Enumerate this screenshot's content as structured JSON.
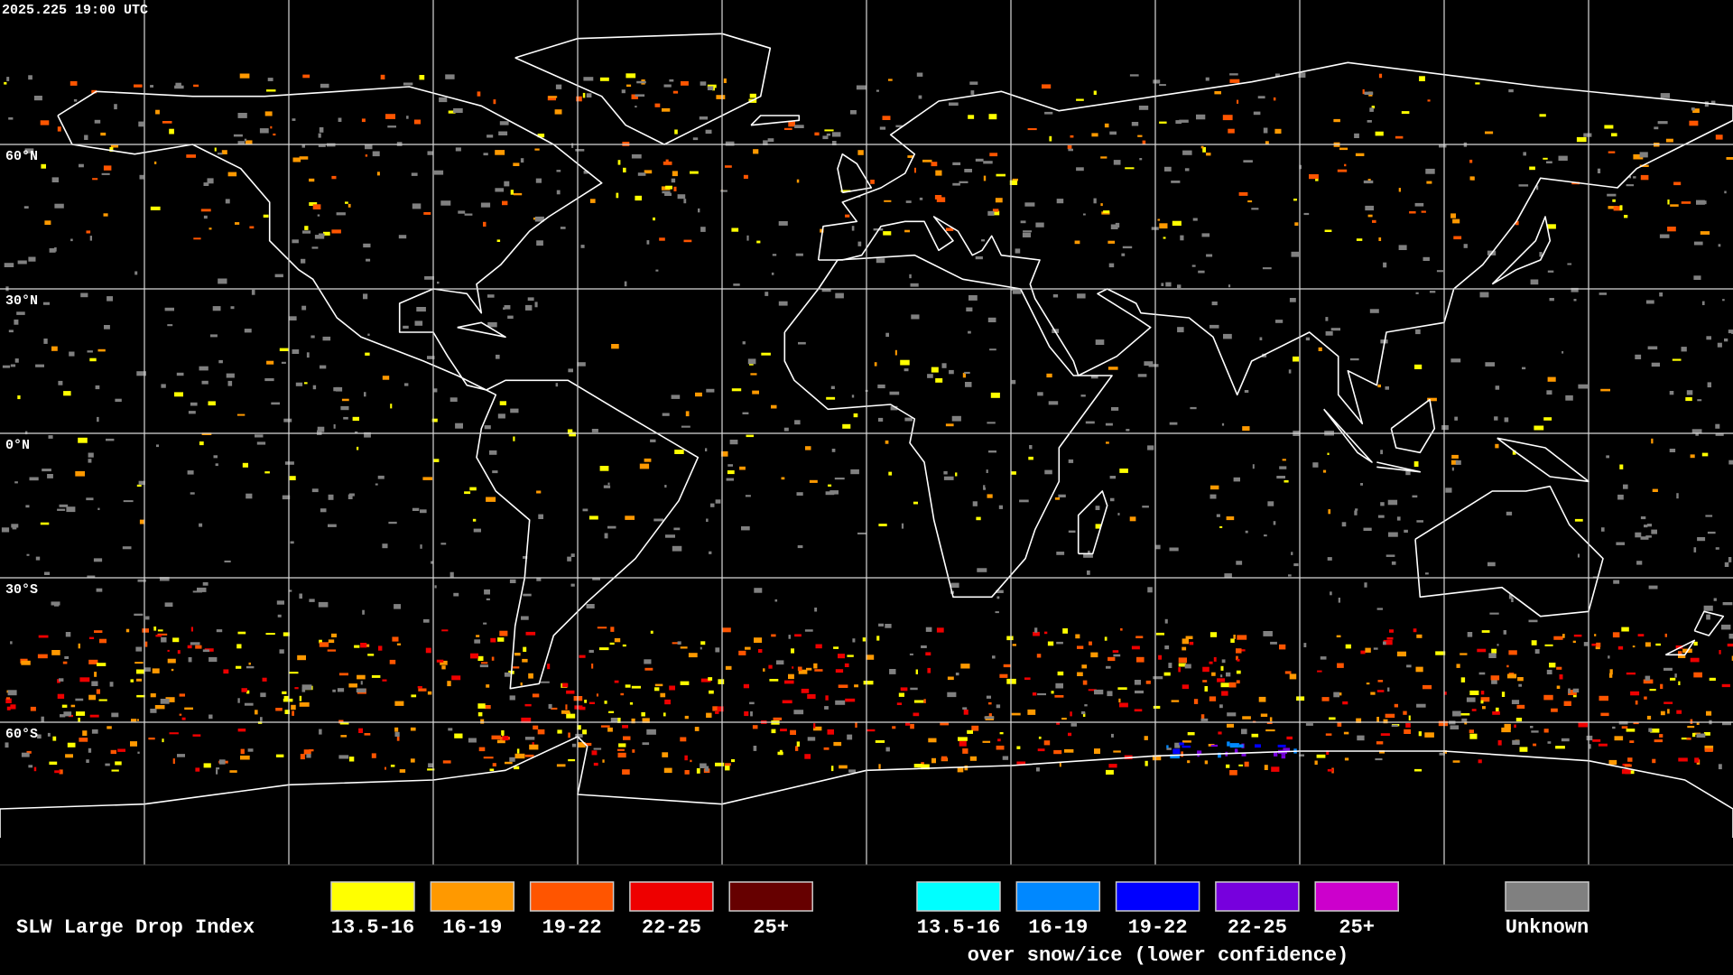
{
  "timestamp": "2025.225 19:00 UTC",
  "latitude_labels": [
    "60°N",
    "30°N",
    "0°N",
    "30°S",
    "60°S"
  ],
  "legend": {
    "title": "SLW Large Drop Index",
    "liquid": [
      {
        "label": "13.5-16",
        "color": "#ffff00"
      },
      {
        "label": "16-19",
        "color": "#ff9900"
      },
      {
        "label": "19-22",
        "color": "#ff5500"
      },
      {
        "label": "22-25",
        "color": "#ee0000"
      },
      {
        "label": "25+",
        "color": "#660000"
      }
    ],
    "snow_ice": [
      {
        "label": "13.5-16",
        "color": "#00ffff"
      },
      {
        "label": "16-19",
        "color": "#0088ff"
      },
      {
        "label": "19-22",
        "color": "#0000ff"
      },
      {
        "label": "22-25",
        "color": "#7700dd"
      },
      {
        "label": "25+",
        "color": "#cc00cc"
      }
    ],
    "snow_ice_note": "over snow/ice (lower confidence)",
    "unknown": {
      "label": "Unknown",
      "color": "#808080"
    }
  }
}
